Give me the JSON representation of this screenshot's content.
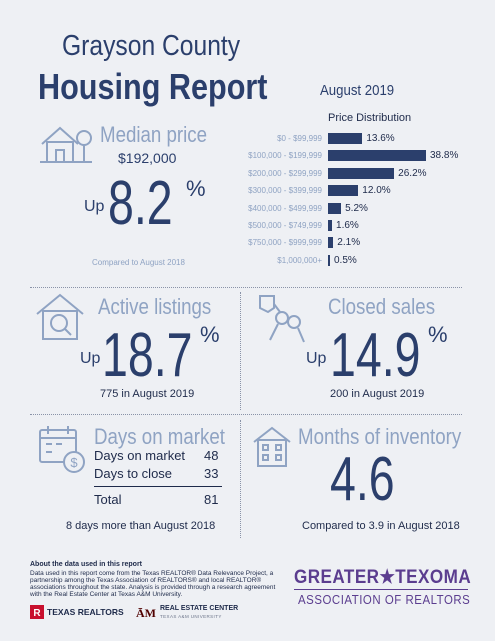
{
  "header": {
    "title_line1": "Grayson County",
    "title_line2": "Housing Report",
    "period": "August 2019",
    "price_distribution_title": "Price Distribution"
  },
  "median_price": {
    "label": "Median price",
    "value": "$192,000",
    "direction": "Up",
    "change": "8.2",
    "pct_sign": "%",
    "comparison": "Compared to August 2018"
  },
  "chart_data": {
    "type": "bar",
    "orientation": "horizontal",
    "title": "Price Distribution",
    "categories": [
      "$0 - $99,999",
      "$100,000 - $199,999",
      "$200,000 - $299,999",
      "$300,000 - $399,999",
      "$400,000 - $499,999",
      "$500,000 - $749,999",
      "$750,000 - $999,999",
      "$1,000,000+"
    ],
    "values": [
      13.6,
      38.8,
      26.2,
      12.0,
      5.2,
      1.6,
      2.1,
      0.5
    ],
    "value_labels": [
      "13.6%",
      "38.8%",
      "26.2%",
      "12.0%",
      "5.2%",
      "1.6%",
      "2.1%",
      "0.5%"
    ],
    "bar_color": "#2b3f6c"
  },
  "active_listings": {
    "label": "Active listings",
    "direction": "Up",
    "change": "18.7",
    "pct_sign": "%",
    "detail": "775 in August 2019"
  },
  "closed_sales": {
    "label": "Closed sales",
    "direction": "Up",
    "change": "14.9",
    "pct_sign": "%",
    "detail": "200 in August 2019"
  },
  "days_on_market": {
    "label": "Days on market",
    "rows": [
      {
        "label": "Days on market",
        "value": "48"
      },
      {
        "label": "Days to close",
        "value": "33"
      }
    ],
    "total_label": "Total",
    "total_value": "81",
    "comparison": "8 days more than August 2018"
  },
  "months_inventory": {
    "label": "Months of inventory",
    "value": "4.6",
    "comparison": "Compared to 3.9 in August 2018"
  },
  "footer": {
    "about_title": "About the data used in this report",
    "about_lines": [
      "Data used in this report come from the Texas REALTOR® Data Relevance Project, a",
      "partnership among the Texas Association of REALTORS® and local REALTOR®",
      "associations throughout the state. Analysis is provided through a research agreement",
      "with the Real Estate Center at Texas A&M University."
    ],
    "logo_texas_realtors": "TEXAS REALTORS",
    "logo_rec": "REAL ESTATE CENTER",
    "logo_rec_sub": "TEXAS A&M UNIVERSITY",
    "assoc_line1": "GREATER★TEXOMA",
    "assoc_line2": "ASSOCIATION OF REALTORS"
  },
  "colors": {
    "navy": "#2b3f6c",
    "steel": "#8fa3c3",
    "background": "#eef0f4",
    "texas_realtors_red": "#c8102e",
    "texoma_purple": "#5b3d8f"
  }
}
